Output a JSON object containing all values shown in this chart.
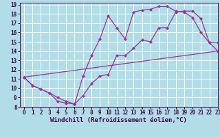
{
  "xlabel": "Windchill (Refroidissement éolien,°C)",
  "bg_color": "#b0dde8",
  "grid_color": "#ffffff",
  "line_color": "#993399",
  "xlim": [
    -0.5,
    23
  ],
  "ylim": [
    8,
    19.2
  ],
  "xticks": [
    0,
    1,
    2,
    3,
    4,
    5,
    6,
    7,
    8,
    9,
    10,
    11,
    12,
    13,
    14,
    15,
    16,
    17,
    18,
    19,
    20,
    21,
    22,
    23
  ],
  "yticks": [
    8,
    9,
    10,
    11,
    12,
    13,
    14,
    15,
    16,
    17,
    18,
    19
  ],
  "line1_x": [
    0,
    1,
    2,
    3,
    4,
    5,
    6,
    7,
    8,
    9,
    10,
    11,
    12,
    13,
    14,
    15,
    16,
    17,
    18,
    19,
    20,
    21,
    22,
    23
  ],
  "line1_y": [
    11.2,
    10.3,
    9.9,
    9.5,
    8.6,
    8.4,
    8.3,
    11.3,
    13.5,
    15.3,
    17.8,
    16.5,
    15.3,
    18.2,
    18.4,
    18.5,
    18.8,
    18.8,
    18.3,
    18.2,
    17.6,
    16.0,
    14.9,
    14.9
  ],
  "line2_x": [
    0,
    1,
    2,
    3,
    4,
    5,
    6,
    7,
    8,
    9,
    10,
    11,
    12,
    13,
    14,
    15,
    16,
    17,
    18,
    19,
    20,
    21,
    22,
    23
  ],
  "line2_y": [
    11.2,
    10.3,
    9.9,
    9.5,
    9.0,
    8.6,
    8.3,
    9.2,
    10.5,
    11.3,
    11.5,
    13.5,
    13.5,
    14.3,
    15.2,
    15.0,
    16.5,
    16.5,
    18.2,
    18.3,
    18.3,
    17.5,
    14.9,
    14.0
  ],
  "line3_x": [
    0,
    23
  ],
  "line3_y": [
    11.2,
    14.0
  ],
  "marker": "D",
  "markersize": 2.0,
  "linewidth": 0.9,
  "xlabel_fontsize": 6.5,
  "tick_fontsize": 5.5
}
